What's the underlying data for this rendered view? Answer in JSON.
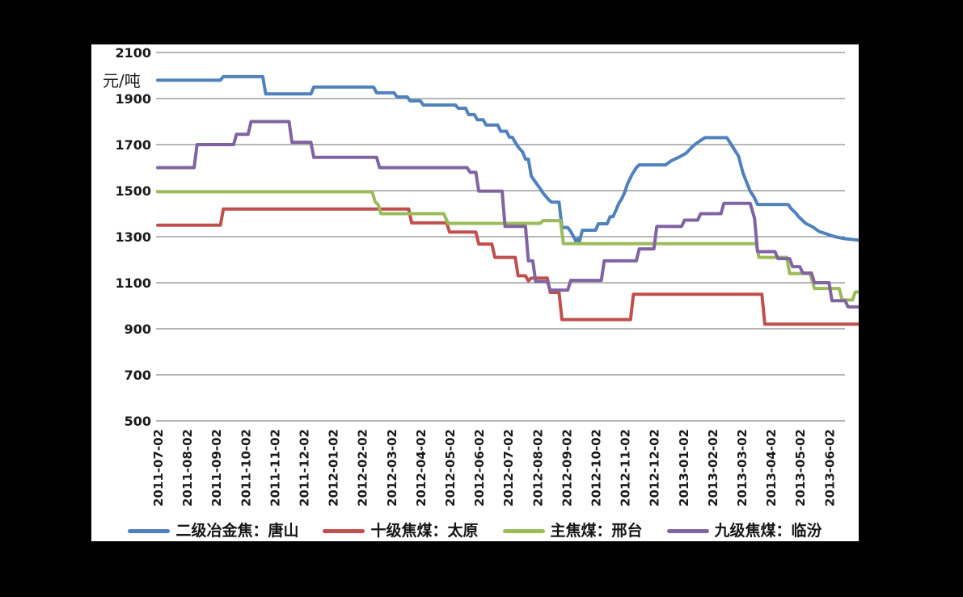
{
  "colors": {
    "background": "#000000",
    "panel": "#ffffff",
    "grid": "#8a8a8a",
    "text": "#1a1a1a",
    "series_blue": "#4f81bd",
    "series_red": "#c0504d",
    "series_green": "#9bbb59",
    "series_purple": "#8064a2"
  },
  "chart_data": {
    "type": "line",
    "title": "",
    "unit_label": "元/吨",
    "grid": true,
    "legend_position": "bottom",
    "y_axis": {
      "min": 500,
      "max": 2100,
      "step": 200,
      "tick_labels": [
        "2100",
        "1900",
        "1700",
        "1500",
        "1300",
        "1100",
        "900",
        "700",
        "500"
      ]
    },
    "x_axis": {
      "tick_labels": [
        "2011-07-02",
        "2011-08-02",
        "2011-09-02",
        "2011-10-02",
        "2011-11-02",
        "2011-12-02",
        "2012-01-02",
        "2012-02-02",
        "2012-03-02",
        "2012-04-02",
        "2012-05-02",
        "2012-06-02",
        "2012-07-02",
        "2012-08-02",
        "2012-09-02",
        "2012-10-02",
        "2012-11-02",
        "2012-12-02",
        "2013-01-02",
        "2013-02-02",
        "2013-03-02",
        "2013-04-02",
        "2013-05-02",
        "2013-06-02"
      ]
    },
    "series": [
      {
        "name": "二级冶金焦：唐山",
        "color": "#4f81bd",
        "points": [
          [
            0,
            1980
          ],
          [
            2.15,
            1980
          ],
          [
            2.25,
            1995
          ],
          [
            3.6,
            1995
          ],
          [
            3.7,
            1920
          ],
          [
            5.25,
            1920
          ],
          [
            5.35,
            1950
          ],
          [
            7.4,
            1950
          ],
          [
            7.5,
            1925
          ],
          [
            8.1,
            1925
          ],
          [
            8.2,
            1907
          ],
          [
            8.55,
            1907
          ],
          [
            8.65,
            1890
          ],
          [
            9.0,
            1890
          ],
          [
            9.1,
            1872
          ],
          [
            10.2,
            1872
          ],
          [
            10.3,
            1858
          ],
          [
            10.55,
            1858
          ],
          [
            10.65,
            1830
          ],
          [
            10.85,
            1830
          ],
          [
            10.95,
            1808
          ],
          [
            11.15,
            1808
          ],
          [
            11.25,
            1785
          ],
          [
            11.65,
            1785
          ],
          [
            11.75,
            1758
          ],
          [
            11.95,
            1758
          ],
          [
            12.05,
            1732
          ],
          [
            12.15,
            1732
          ],
          [
            12.25,
            1710
          ],
          [
            12.35,
            1690
          ],
          [
            12.5,
            1668
          ],
          [
            12.6,
            1637
          ],
          [
            12.7,
            1637
          ],
          [
            12.8,
            1563
          ],
          [
            12.9,
            1545
          ],
          [
            13.0,
            1527
          ],
          [
            13.1,
            1510
          ],
          [
            13.2,
            1490
          ],
          [
            13.3,
            1475
          ],
          [
            13.4,
            1460
          ],
          [
            13.5,
            1450
          ],
          [
            13.75,
            1450
          ],
          [
            13.85,
            1340
          ],
          [
            14.05,
            1340
          ],
          [
            14.15,
            1323
          ],
          [
            14.25,
            1300
          ],
          [
            14.3,
            1288
          ],
          [
            14.35,
            1272
          ],
          [
            14.4,
            1292
          ],
          [
            14.45,
            1280
          ],
          [
            14.55,
            1328
          ],
          [
            15.0,
            1328
          ],
          [
            15.1,
            1356
          ],
          [
            15.4,
            1356
          ],
          [
            15.5,
            1387
          ],
          [
            15.6,
            1387
          ],
          [
            15.7,
            1415
          ],
          [
            15.8,
            1445
          ],
          [
            15.9,
            1465
          ],
          [
            16.0,
            1493
          ],
          [
            16.1,
            1530
          ],
          [
            16.25,
            1570
          ],
          [
            16.4,
            1600
          ],
          [
            16.5,
            1612
          ],
          [
            17.4,
            1612
          ],
          [
            17.6,
            1630
          ],
          [
            17.9,
            1648
          ],
          [
            18.1,
            1662
          ],
          [
            18.3,
            1688
          ],
          [
            18.45,
            1705
          ],
          [
            18.65,
            1722
          ],
          [
            18.75,
            1730
          ],
          [
            19.5,
            1730
          ],
          [
            19.65,
            1700
          ],
          [
            19.9,
            1650
          ],
          [
            20.05,
            1578
          ],
          [
            20.15,
            1545
          ],
          [
            20.3,
            1498
          ],
          [
            20.45,
            1468
          ],
          [
            20.55,
            1440
          ],
          [
            21.6,
            1440
          ],
          [
            21.7,
            1422
          ],
          [
            21.85,
            1404
          ],
          [
            21.95,
            1388
          ],
          [
            22.2,
            1358
          ],
          [
            22.45,
            1342
          ],
          [
            22.65,
            1323
          ],
          [
            23.2,
            1300
          ],
          [
            23.5,
            1292
          ],
          [
            24.0,
            1285
          ]
        ]
      },
      {
        "name": "十级焦煤：太原",
        "color": "#c0504d",
        "points": [
          [
            0,
            1350
          ],
          [
            2.15,
            1350
          ],
          [
            2.25,
            1420
          ],
          [
            8.6,
            1420
          ],
          [
            8.7,
            1360
          ],
          [
            9.9,
            1360
          ],
          [
            10.0,
            1320
          ],
          [
            10.9,
            1320
          ],
          [
            11.0,
            1268
          ],
          [
            11.45,
            1268
          ],
          [
            11.55,
            1210
          ],
          [
            12.25,
            1210
          ],
          [
            12.35,
            1130
          ],
          [
            12.6,
            1130
          ],
          [
            12.7,
            1108
          ],
          [
            12.8,
            1120
          ],
          [
            13.35,
            1120
          ],
          [
            13.45,
            1058
          ],
          [
            13.75,
            1058
          ],
          [
            13.85,
            940
          ],
          [
            16.2,
            940
          ],
          [
            16.3,
            1050
          ],
          [
            20.7,
            1050
          ],
          [
            20.8,
            920
          ],
          [
            24.0,
            920
          ]
        ]
      },
      {
        "name": "主焦煤：邢台",
        "color": "#9bbb59",
        "points": [
          [
            0,
            1495
          ],
          [
            7.35,
            1495
          ],
          [
            7.45,
            1452
          ],
          [
            7.55,
            1440
          ],
          [
            7.65,
            1400
          ],
          [
            9.8,
            1400
          ],
          [
            9.95,
            1358
          ],
          [
            13.1,
            1358
          ],
          [
            13.2,
            1370
          ],
          [
            13.8,
            1370
          ],
          [
            13.9,
            1270
          ],
          [
            20.5,
            1270
          ],
          [
            20.6,
            1210
          ],
          [
            21.55,
            1210
          ],
          [
            21.65,
            1140
          ],
          [
            22.35,
            1140
          ],
          [
            22.5,
            1075
          ],
          [
            23.35,
            1075
          ],
          [
            23.45,
            1025
          ],
          [
            23.8,
            1025
          ],
          [
            23.9,
            1060
          ],
          [
            24.0,
            1060
          ]
        ]
      },
      {
        "name": "九级焦煤：临汾",
        "color": "#8064a2",
        "points": [
          [
            0,
            1600
          ],
          [
            1.25,
            1600
          ],
          [
            1.35,
            1700
          ],
          [
            2.6,
            1700
          ],
          [
            2.7,
            1745
          ],
          [
            3.1,
            1745
          ],
          [
            3.2,
            1800
          ],
          [
            4.5,
            1800
          ],
          [
            4.6,
            1710
          ],
          [
            5.25,
            1710
          ],
          [
            5.35,
            1645
          ],
          [
            7.5,
            1645
          ],
          [
            7.6,
            1600
          ],
          [
            10.6,
            1600
          ],
          [
            10.7,
            1580
          ],
          [
            10.9,
            1580
          ],
          [
            11.0,
            1498
          ],
          [
            11.8,
            1498
          ],
          [
            11.9,
            1345
          ],
          [
            12.6,
            1345
          ],
          [
            12.7,
            1195
          ],
          [
            12.85,
            1195
          ],
          [
            12.95,
            1105
          ],
          [
            13.35,
            1105
          ],
          [
            13.45,
            1068
          ],
          [
            14.05,
            1068
          ],
          [
            14.15,
            1110
          ],
          [
            15.2,
            1110
          ],
          [
            15.3,
            1195
          ],
          [
            16.4,
            1195
          ],
          [
            16.5,
            1247
          ],
          [
            17.0,
            1247
          ],
          [
            17.1,
            1345
          ],
          [
            17.95,
            1345
          ],
          [
            18.05,
            1372
          ],
          [
            18.5,
            1372
          ],
          [
            18.6,
            1400
          ],
          [
            19.3,
            1400
          ],
          [
            19.4,
            1445
          ],
          [
            20.3,
            1445
          ],
          [
            20.45,
            1380
          ],
          [
            20.55,
            1235
          ],
          [
            21.15,
            1235
          ],
          [
            21.25,
            1205
          ],
          [
            21.65,
            1205
          ],
          [
            21.75,
            1170
          ],
          [
            22.0,
            1170
          ],
          [
            22.1,
            1142
          ],
          [
            22.4,
            1142
          ],
          [
            22.5,
            1100
          ],
          [
            23.0,
            1100
          ],
          [
            23.1,
            1022
          ],
          [
            23.55,
            1022
          ],
          [
            23.65,
            995
          ],
          [
            24.0,
            995
          ]
        ]
      }
    ]
  }
}
